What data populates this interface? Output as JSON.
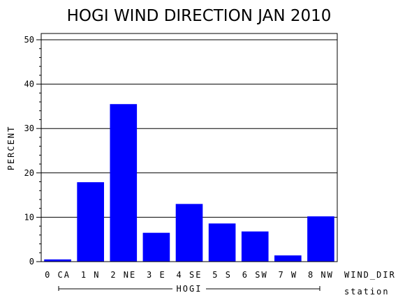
{
  "chart_data": {
    "type": "bar",
    "title": "HOGI WIND DIRECTION JAN 2010",
    "ylabel": "PERCENT",
    "xlabel": "WIND_DIR",
    "group_axis_label": "station",
    "group_label": "HOGI",
    "categories": [
      "0 CA",
      "1 N",
      "2 NE",
      "3 E",
      "4 SE",
      "5 S",
      "6 SW",
      "7 W",
      "8 NW"
    ],
    "values": [
      0.5,
      17.9,
      35.5,
      6.5,
      13.0,
      8.6,
      6.8,
      1.4,
      10.2
    ],
    "ylim": [
      0,
      50
    ],
    "yticks": [
      "0",
      "10",
      "20",
      "30",
      "40",
      "50"
    ],
    "grid": true,
    "bar_color": "#0000ff"
  }
}
